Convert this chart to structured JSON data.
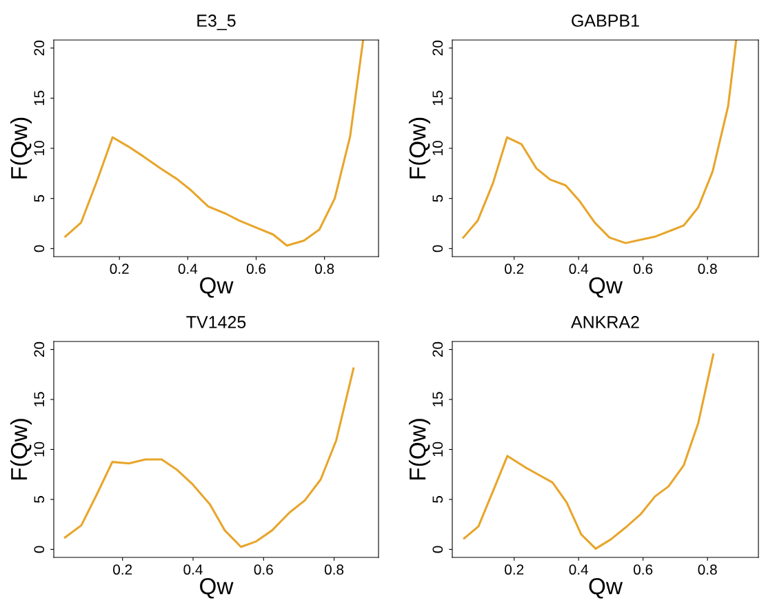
{
  "chart_data": [
    {
      "type": "line",
      "title": "E3_5",
      "xlabel": "Qw",
      "ylabel": "F(Qw)",
      "xlim": [
        0.008,
        0.958
      ],
      "ylim": [
        -0.8,
        20.8
      ],
      "xticks": [
        0.2,
        0.4,
        0.6,
        0.8
      ],
      "yticks": [
        0,
        5,
        10,
        15,
        20
      ],
      "grid": false,
      "marker": "none",
      "line_style": "solid",
      "series": [
        {
          "color": "#e8a52a",
          "x": [
            0.042,
            0.088,
            0.135,
            0.18,
            0.225,
            0.27,
            0.32,
            0.37,
            0.41,
            0.46,
            0.51,
            0.55,
            0.6,
            0.65,
            0.69,
            0.74,
            0.785,
            0.83,
            0.875,
            0.913
          ],
          "values": [
            1.2,
            2.6,
            6.8,
            11.1,
            10.2,
            9.2,
            8.0,
            6.9,
            5.8,
            4.2,
            3.5,
            2.8,
            2.1,
            1.4,
            0.3,
            0.8,
            1.9,
            5.0,
            11.2,
            20.8
          ]
        }
      ]
    },
    {
      "type": "line",
      "title": "GABPB1",
      "xlabel": "Qw",
      "ylabel": "F(Qw)",
      "xlim": [
        0.008,
        0.958
      ],
      "ylim": [
        -0.8,
        20.8
      ],
      "xticks": [
        0.2,
        0.4,
        0.6,
        0.8
      ],
      "yticks": [
        0,
        5,
        10,
        15,
        20
      ],
      "grid": false,
      "marker": "none",
      "line_style": "solid",
      "series": [
        {
          "color": "#e8a52a",
          "x": [
            0.042,
            0.087,
            0.134,
            0.178,
            0.223,
            0.269,
            0.311,
            0.36,
            0.404,
            0.45,
            0.496,
            0.546,
            0.595,
            0.638,
            0.694,
            0.726,
            0.771,
            0.816,
            0.864,
            0.889
          ],
          "values": [
            1.1,
            2.8,
            6.5,
            11.1,
            10.4,
            8.0,
            6.9,
            6.3,
            4.7,
            2.6,
            1.1,
            0.55,
            0.9,
            1.2,
            1.9,
            2.3,
            4.1,
            7.7,
            14.2,
            20.8
          ]
        }
      ]
    },
    {
      "type": "line",
      "title": "TV1425",
      "xlabel": "Qw",
      "ylabel": "F(Qw)",
      "xlim": [
        0.005,
        0.926
      ],
      "ylim": [
        -0.8,
        20.8
      ],
      "xticks": [
        0.2,
        0.4,
        0.6,
        0.8
      ],
      "yticks": [
        0,
        5,
        10,
        15,
        20
      ],
      "grid": false,
      "marker": "none",
      "line_style": "solid",
      "series": [
        {
          "color": "#e8a52a",
          "x": [
            0.037,
            0.083,
            0.127,
            0.171,
            0.218,
            0.265,
            0.311,
            0.353,
            0.399,
            0.448,
            0.49,
            0.536,
            0.579,
            0.624,
            0.674,
            0.717,
            0.762,
            0.806,
            0.855
          ],
          "values": [
            1.2,
            2.4,
            5.5,
            8.75,
            8.6,
            9.0,
            9.0,
            8.0,
            6.5,
            4.5,
            1.9,
            0.25,
            0.8,
            1.9,
            3.7,
            4.9,
            7.0,
            10.9,
            18.1
          ]
        }
      ]
    },
    {
      "type": "line",
      "title": "ANKRA2",
      "xlabel": "Qw",
      "ylabel": "F(Qw)",
      "xlim": [
        0.008,
        0.958
      ],
      "ylim": [
        -0.8,
        20.8
      ],
      "xticks": [
        0.2,
        0.4,
        0.6,
        0.8
      ],
      "yticks": [
        0,
        5,
        10,
        15,
        20
      ],
      "grid": false,
      "marker": "none",
      "line_style": "solid",
      "series": [
        {
          "color": "#e8a52a",
          "x": [
            0.045,
            0.089,
            0.134,
            0.179,
            0.235,
            0.274,
            0.319,
            0.363,
            0.408,
            0.453,
            0.5,
            0.546,
            0.592,
            0.637,
            0.679,
            0.726,
            0.771,
            0.818
          ],
          "values": [
            1.1,
            2.3,
            5.8,
            9.35,
            8.2,
            7.5,
            6.7,
            4.7,
            1.5,
            0.07,
            1.0,
            2.2,
            3.5,
            5.3,
            6.3,
            8.4,
            12.6,
            19.5
          ]
        }
      ]
    }
  ]
}
